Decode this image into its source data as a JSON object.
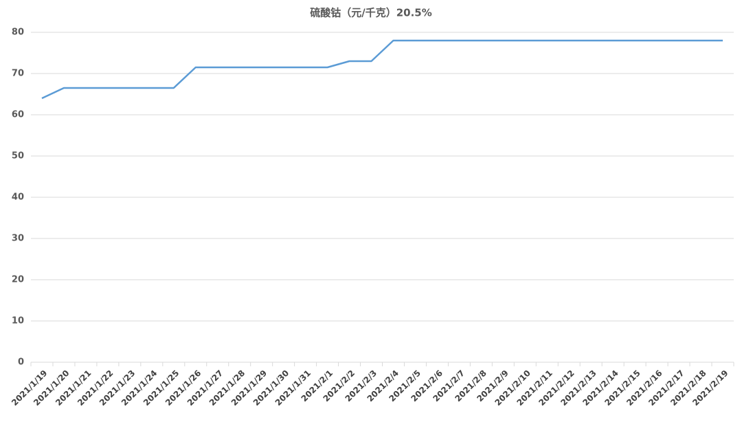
{
  "chart_data": {
    "type": "line",
    "title": "硫酸钴（元/千克）20.5%",
    "categories": [
      "2021/1/19",
      "2021/1/20",
      "2021/1/21",
      "2021/1/22",
      "2021/1/23",
      "2021/1/24",
      "2021/1/25",
      "2021/1/26",
      "2021/1/27",
      "2021/1/28",
      "2021/1/29",
      "2021/1/30",
      "2021/1/31",
      "2021/2/1",
      "2021/2/2",
      "2021/2/3",
      "2021/2/4",
      "2021/2/5",
      "2021/2/6",
      "2021/2/7",
      "2021/2/8",
      "2021/2/9",
      "2021/2/10",
      "2021/2/11",
      "2021/2/12",
      "2021/2/13",
      "2021/2/14",
      "2021/2/15",
      "2021/2/16",
      "2021/2/17",
      "2021/2/18",
      "2021/2/19"
    ],
    "values": [
      64,
      66.5,
      66.5,
      66.5,
      66.5,
      66.5,
      66.5,
      71.5,
      71.5,
      71.5,
      71.5,
      71.5,
      71.5,
      71.5,
      73,
      73,
      78,
      78,
      78,
      78,
      78,
      78,
      78,
      78,
      78,
      78,
      78,
      78,
      78,
      78,
      78,
      78
    ],
    "color": "#5b9bd5",
    "ylim": [
      0,
      80
    ],
    "yticks": [
      0,
      10,
      20,
      30,
      40,
      50,
      60,
      70,
      80
    ],
    "grid": true
  }
}
